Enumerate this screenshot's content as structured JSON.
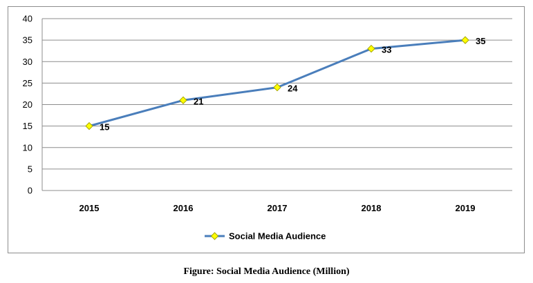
{
  "caption": "Figure: Social Media Audience (Million)",
  "chart_data": {
    "type": "line",
    "title": "",
    "xlabel": "",
    "ylabel": "",
    "categories": [
      "2015",
      "2016",
      "2017",
      "2018",
      "2019"
    ],
    "series": [
      {
        "name": "Social Media Audience",
        "values": [
          15,
          21,
          24,
          33,
          35
        ]
      }
    ],
    "ylim": [
      0,
      40
    ],
    "yticks": [
      0,
      5,
      10,
      15,
      20,
      25,
      30,
      35,
      40
    ],
    "grid": true,
    "legend": "bottom",
    "colors": {
      "line": "#4a7ebb",
      "marker": "#ffff00",
      "marker_edge": "#a6a600",
      "grid": "#8c8c8c"
    }
  }
}
